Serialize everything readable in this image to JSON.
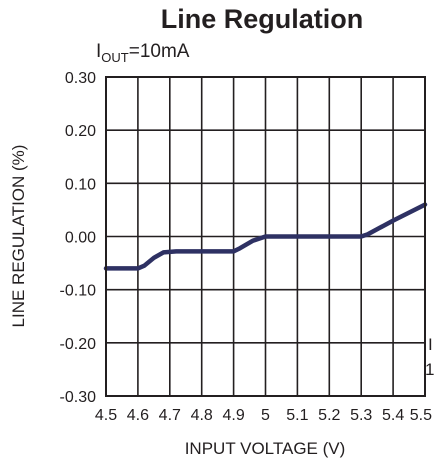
{
  "chart_data": {
    "type": "line",
    "title": "Line Regulation",
    "subtitle": {
      "symbol": "I",
      "subscript": "OUT",
      "rest": "=10mA"
    },
    "xlabel": "INPUT VOLTAGE (V)",
    "ylabel": "LINE REGULATION (%)",
    "xlim": [
      4.5,
      5.5
    ],
    "ylim": [
      -0.3,
      0.3
    ],
    "x_ticks": [
      4.5,
      4.6,
      4.7,
      4.8,
      4.9,
      5.0,
      5.1,
      5.2,
      5.3,
      5.4,
      5.5
    ],
    "x_tick_labels": [
      "4.5",
      "4.6",
      "4.7",
      "4.8",
      "4.9",
      "5",
      "5.1",
      "5.2",
      "5.3",
      "5.4",
      "5.5"
    ],
    "y_ticks": [
      0.3,
      0.2,
      0.1,
      0.0,
      -0.1,
      -0.2,
      -0.3
    ],
    "y_tick_labels": [
      "0.30",
      "0.20",
      "0.10",
      "0.00",
      "-0.10",
      "-0.20",
      "-0.30"
    ],
    "grid": true,
    "series_color": "#2e3163",
    "series": [
      {
        "x": [
          4.5,
          4.6,
          4.62,
          4.65,
          4.68,
          4.72,
          4.8,
          4.9,
          4.92,
          4.96,
          5.0,
          5.1,
          5.2,
          5.3,
          5.32,
          5.4,
          5.5
        ],
        "values": [
          -0.06,
          -0.06,
          -0.055,
          -0.04,
          -0.03,
          -0.028,
          -0.028,
          -0.028,
          -0.022,
          -0.008,
          0.0,
          0.0,
          0.0,
          0.0,
          0.004,
          0.03,
          0.06
        ]
      }
    ]
  },
  "margin_marks": [
    "I",
    "1"
  ]
}
